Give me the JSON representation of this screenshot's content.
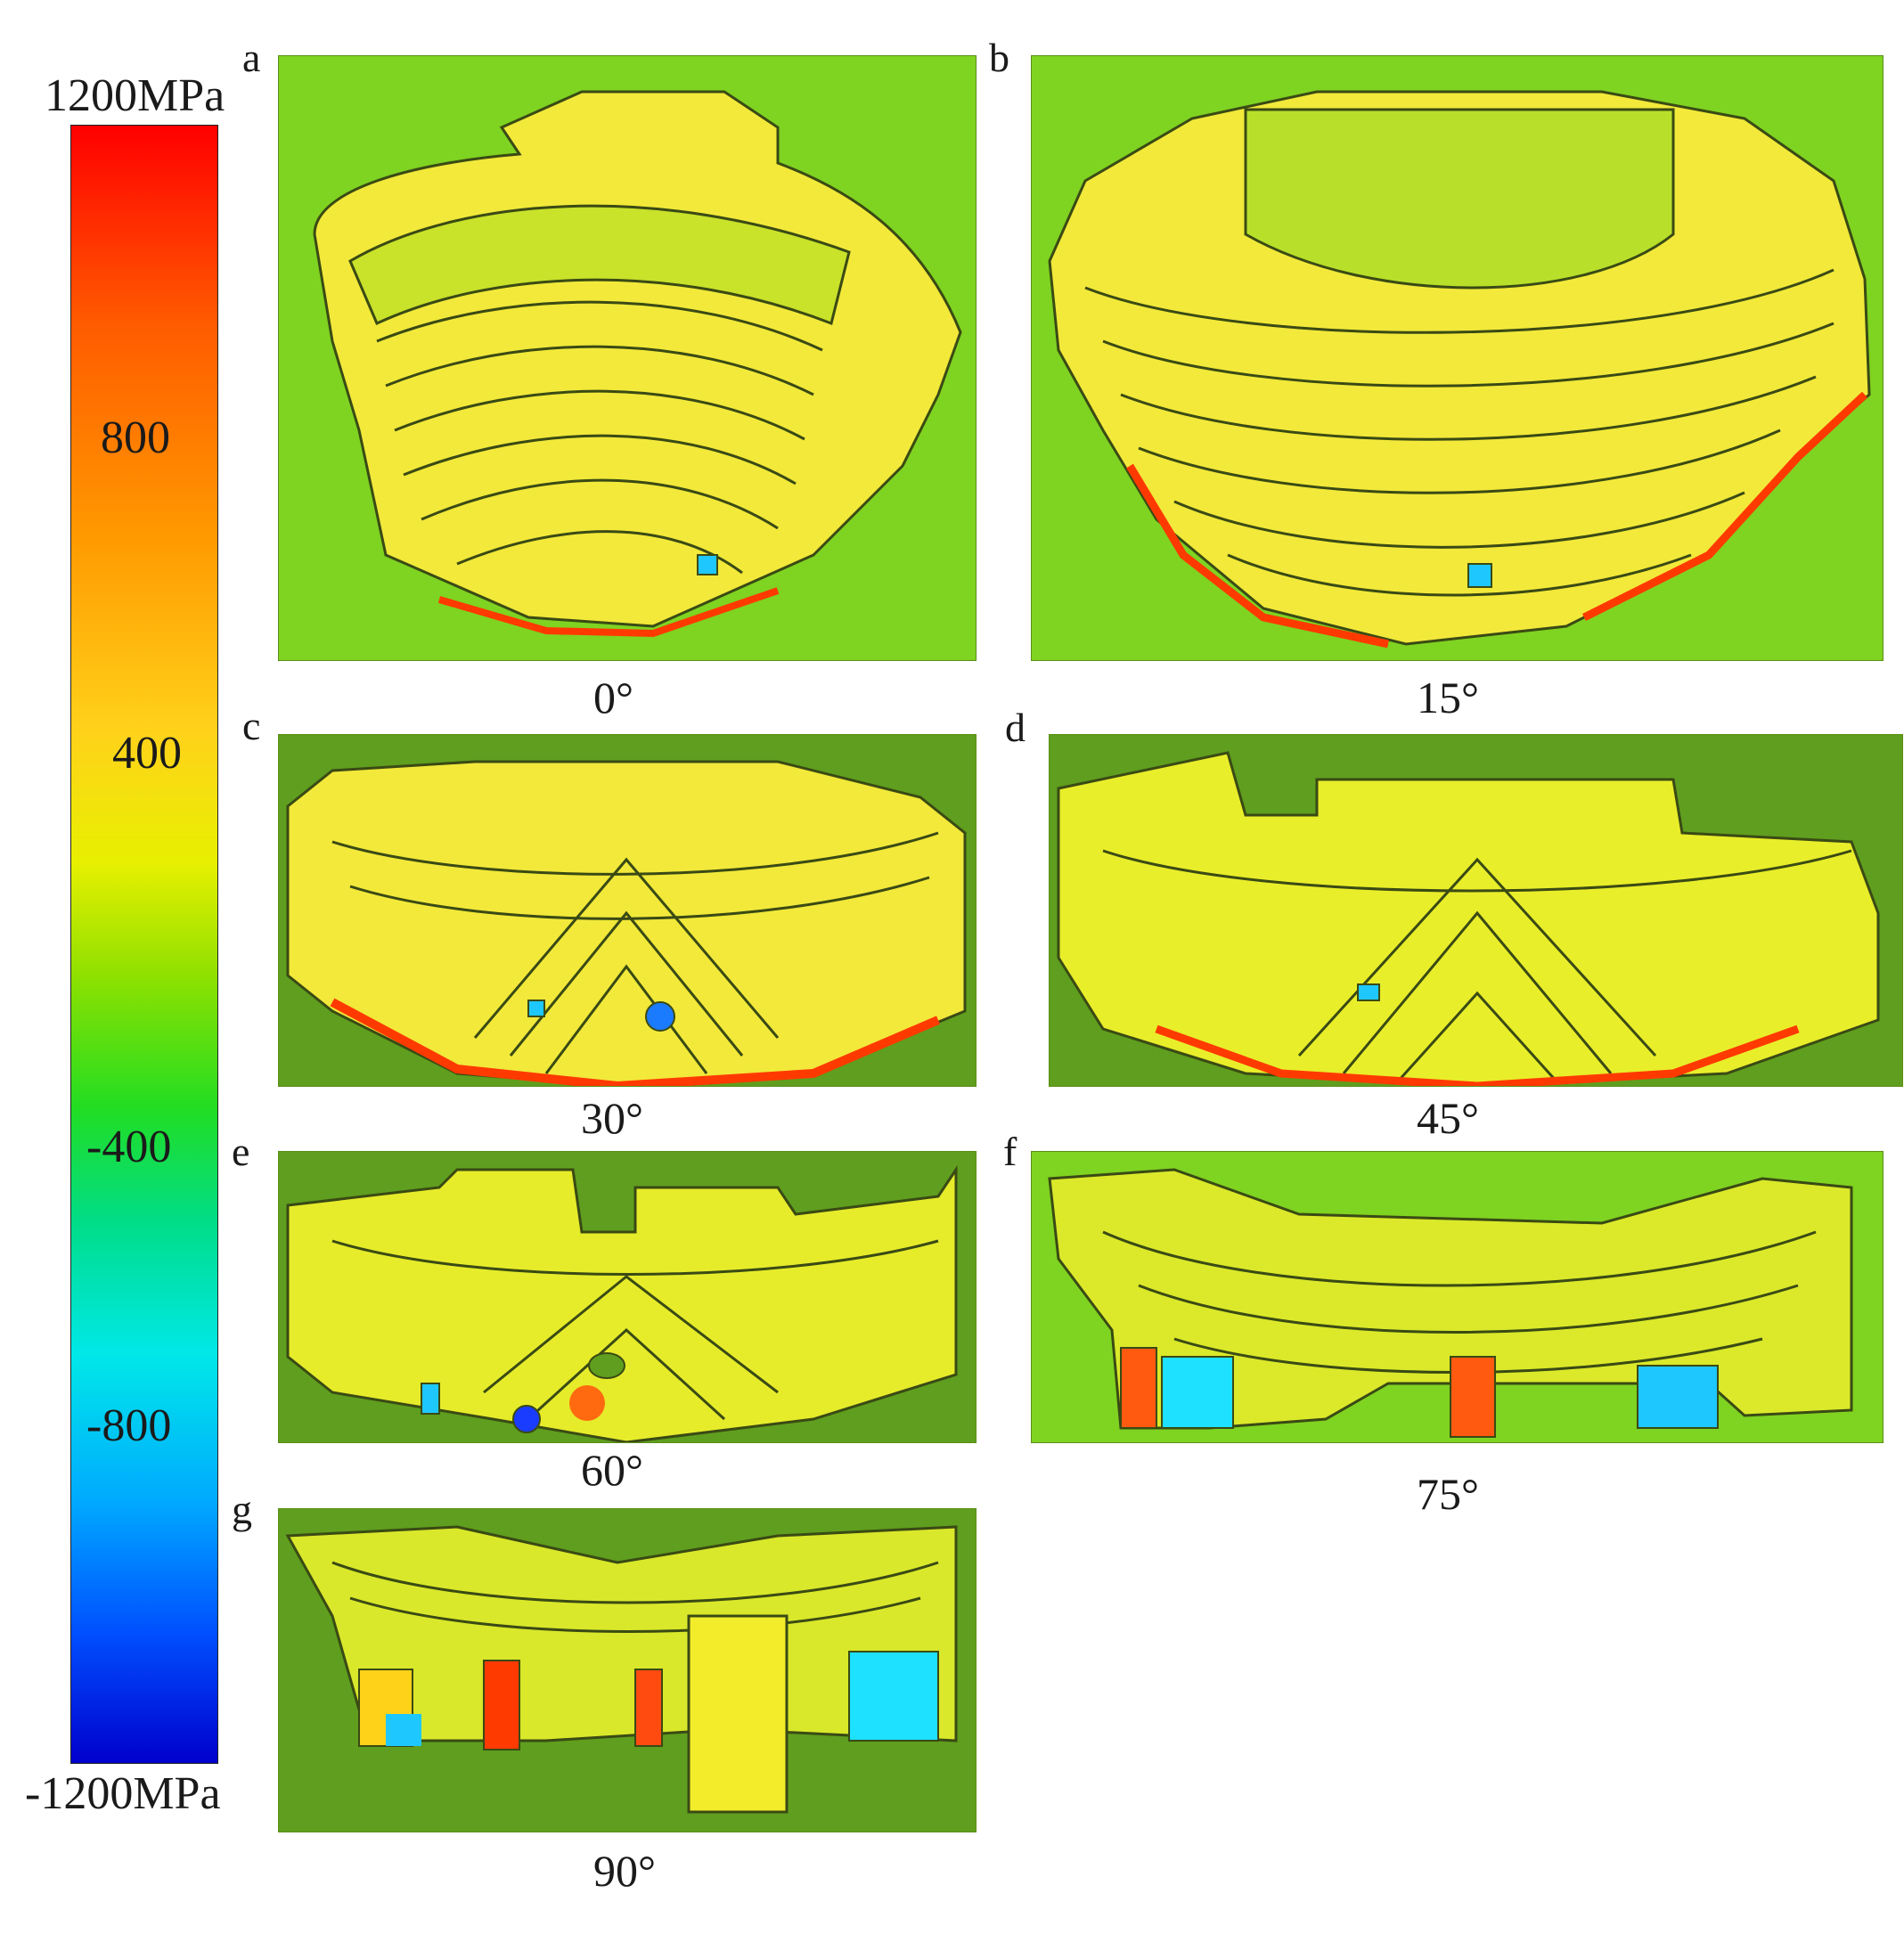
{
  "colorbar": {
    "labels": [
      "1200MPa",
      "800",
      "400",
      "-400",
      "-800",
      "-1200MPa"
    ]
  },
  "panels": [
    {
      "letter": "a",
      "angle": "0°"
    },
    {
      "letter": "b",
      "angle": "15°"
    },
    {
      "letter": "c",
      "angle": "30°"
    },
    {
      "letter": "d",
      "angle": "45°"
    },
    {
      "letter": "e",
      "angle": "60°"
    },
    {
      "letter": "f",
      "angle": "75°"
    },
    {
      "letter": "g",
      "angle": "90°"
    }
  ],
  "colors": {
    "background_light": "#7fd321",
    "background_dark": "#5f9e1e",
    "contour_line": "#3a4a14",
    "high_stress": "#ff2a00",
    "mid_stress": "#f4ef1a",
    "low_stress": "#1ec8ff"
  }
}
